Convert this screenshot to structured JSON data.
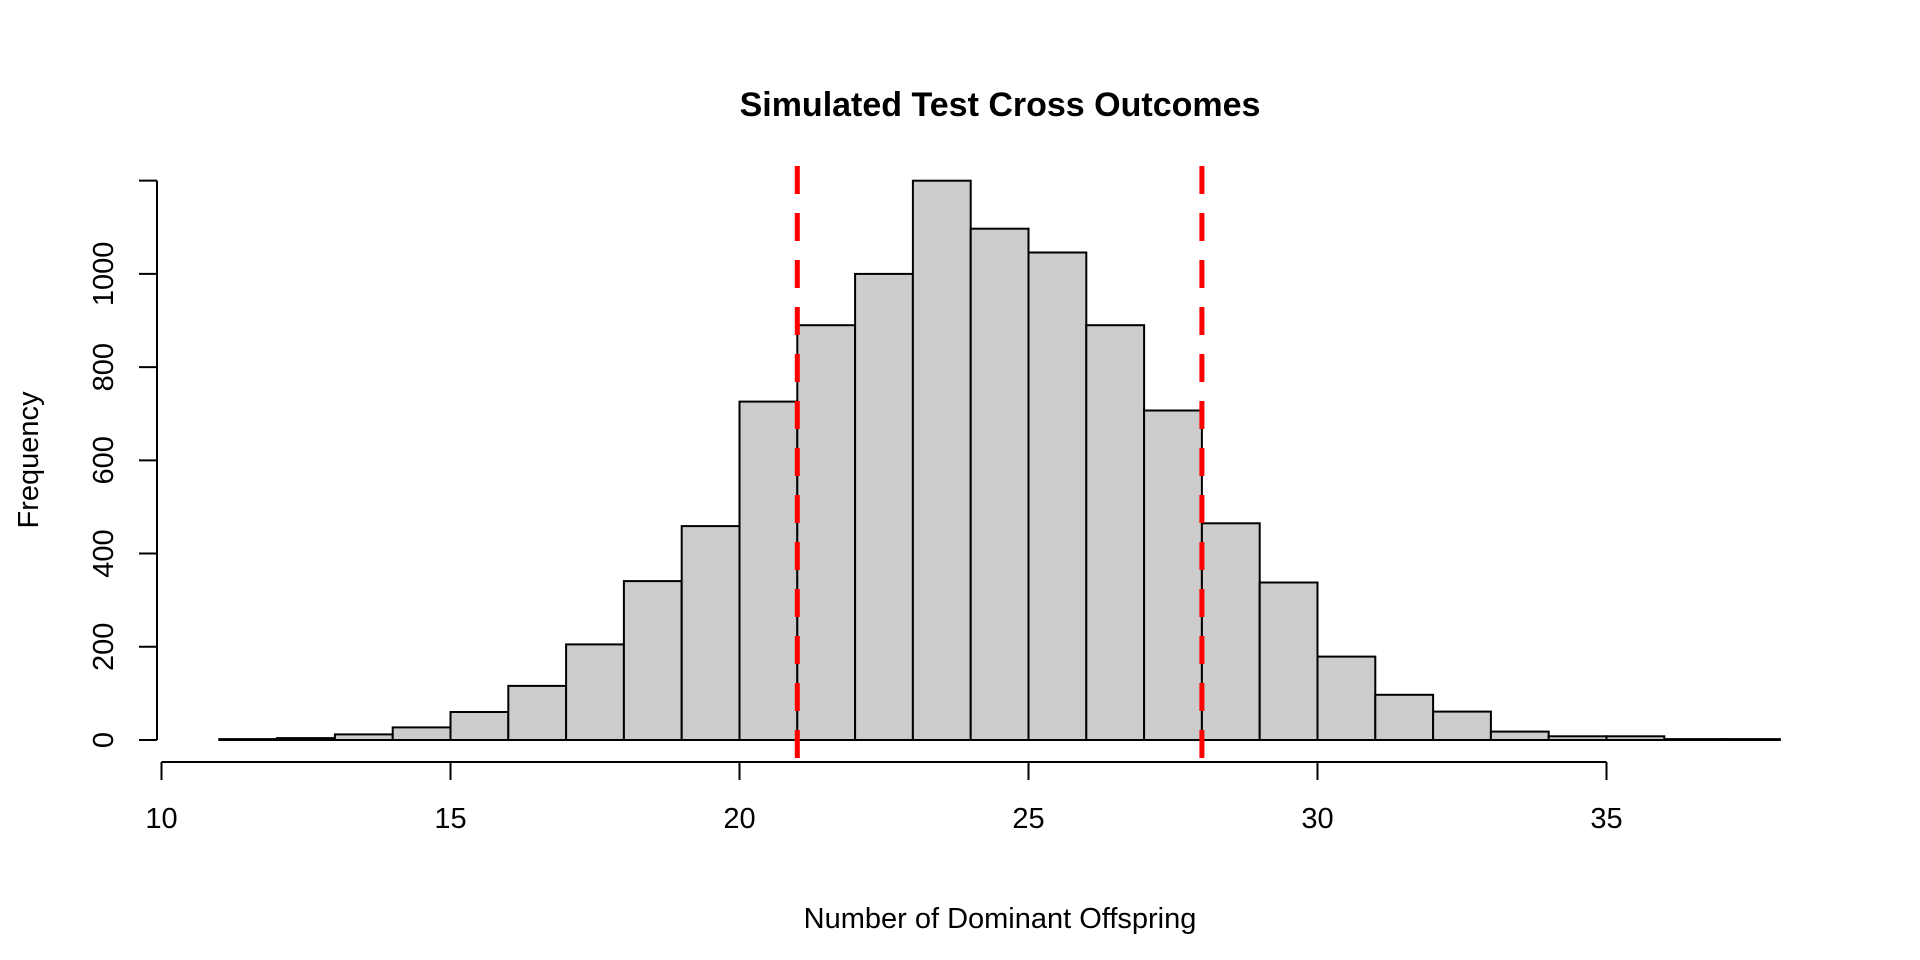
{
  "chart_data": {
    "type": "bar",
    "subtype": "histogram",
    "title": "Simulated Test Cross Outcomes",
    "xlabel": "Number of Dominant Offspring",
    "ylabel": "Frequency",
    "bin_start": 11,
    "bin_width": 1,
    "bin_edges": [
      11,
      12,
      13,
      14,
      15,
      16,
      17,
      18,
      19,
      20,
      21,
      22,
      23,
      24,
      25,
      26,
      27,
      28,
      29,
      30,
      31,
      32,
      33,
      34,
      35,
      36,
      37,
      38
    ],
    "counts": [
      2,
      4,
      12,
      27,
      60,
      116,
      205,
      341,
      459,
      726,
      890,
      1000,
      1200,
      1097,
      1046,
      890,
      707,
      465,
      338,
      179,
      97,
      61,
      18,
      8,
      8,
      2,
      2
    ],
    "x_ticks": [
      10,
      15,
      20,
      25,
      30,
      35
    ],
    "y_ticks": [
      0,
      200,
      400,
      600,
      800,
      1000
    ],
    "y_axis_top": 1200,
    "xlim": [
      10,
      38
    ],
    "ylim": [
      0,
      1200
    ],
    "grid": "off",
    "legend": "none",
    "vlines": [
      {
        "x": 21,
        "style": "dashed",
        "color": "#FF0000"
      },
      {
        "x": 28,
        "style": "dashed",
        "color": "#FF0000"
      }
    ],
    "colors": {
      "bar_fill": "#CCCCCC",
      "bar_stroke": "#000000",
      "axis": "#000000",
      "vline": "#FF0000",
      "background": "#FFFFFF"
    }
  }
}
